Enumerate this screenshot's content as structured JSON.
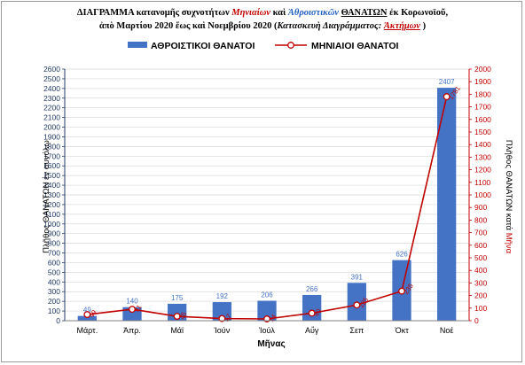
{
  "title": {
    "line1": [
      {
        "text": "ΔΙΑΓΡΑΜΜΑ κατανομῆς συχνοτήτων ",
        "style": "plain"
      },
      {
        "text": "Μηνιαίων",
        "style": "red"
      },
      {
        "text": " καὶ ",
        "style": "plain"
      },
      {
        "text": "Ἀθροιστικῶν",
        "style": "blue"
      },
      {
        "text": " ",
        "style": "plain"
      },
      {
        "text": "ΘΑΝΑΤΩΝ",
        "style": "uline"
      },
      {
        "text": " ἐκ Κορωνοϊοῦ,",
        "style": "plain"
      }
    ],
    "line2": [
      {
        "text": "ἀπὸ Μαρτίου 2020 ἕως καὶ Νοεμβρίου 2020 (",
        "style": "plain"
      },
      {
        "text": "Κατασκευὴ Διαγράμματος: ",
        "style": "italic"
      },
      {
        "text": "Ἀκτήμων",
        "style": "red uline"
      },
      {
        "text": " )",
        "style": "plain"
      }
    ]
  },
  "colors": {
    "bar": "#4472c4",
    "line": "#c00000",
    "left_axis": "#1f3864",
    "right_axis": "#c00000",
    "grid": "#d9d9d9"
  },
  "chart_data": {
    "type": "bar",
    "categories": [
      "Μάρτ.",
      "Ἀπρ.",
      "Μάϊ",
      "Ἰούν",
      "Ἰούλ",
      "Αὔγ",
      "Σεπ",
      "Ὀκτ",
      "Νοέ"
    ],
    "series": [
      {
        "name": "ΑΘΡΟΙΣΤΙΚΟΙ ΘΑΝΑΤΟΙ",
        "type": "bar",
        "axis": "left",
        "values": [
          49,
          140,
          175,
          192,
          206,
          266,
          391,
          626,
          2407
        ],
        "labels": [
          "49",
          "140",
          "175",
          "192",
          "206",
          "266",
          "391",
          "626",
          "2407"
        ]
      },
      {
        "name": "ΜΗΝΙΑΙΟΙ ΘΑΝΑΤΟΙ",
        "type": "line",
        "axis": "right",
        "values": [
          49,
          91,
          35,
          17,
          14,
          60,
          125,
          235,
          1781
        ],
        "labels": [
          "49",
          "91",
          "35",
          "17",
          "14",
          "60",
          "125",
          "235",
          "1781"
        ]
      }
    ],
    "xlabel": "Μῆνας",
    "ylabel_left": "Πλῆθος ΘΑΝΑΤΩΝ ἐν συνόλῳ",
    "ylabel_right_parts": [
      {
        "text": "Πλῆθος ΘΑΝΑΤΩΝ κατά ",
        "style": "plain"
      },
      {
        "text": "Μῆνα",
        "style": "red"
      }
    ],
    "ylim_left": [
      0,
      2600
    ],
    "ystep_left": 100,
    "ylim_right": [
      0,
      2000
    ],
    "ystep_right": 100,
    "yticks_left": [
      "0",
      "100",
      "200",
      "300",
      "400",
      "500",
      "600",
      "700",
      "800",
      "900",
      "1000",
      "1100",
      "1200",
      "1300",
      "1400",
      "1500",
      "1600",
      "1700",
      "1800",
      "1900",
      "2000",
      "2100",
      "2200",
      "2300",
      "2400",
      "2500",
      "2600"
    ],
    "yticks_right": [
      "0",
      "100",
      "200",
      "300",
      "400",
      "500",
      "600",
      "700",
      "800",
      "900",
      "1000",
      "1100",
      "1200",
      "1300",
      "1400",
      "1500",
      "1600",
      "1700",
      "1800",
      "1900",
      "2000"
    ],
    "grid": true,
    "legend": "top"
  }
}
